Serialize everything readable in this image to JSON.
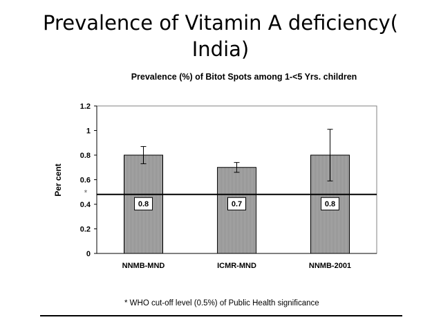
{
  "slide": {
    "title_line1": "Prevalence of Vitamin A deficiency(",
    "title_line2": "India)",
    "footnote": "* WHO cut-off level (0.5%) of Public Health significance"
  },
  "chart_data": {
    "type": "bar",
    "title": "Prevalence (%) of Bitot Spots among 1-<5 Yrs. children",
    "xlabel": "",
    "ylabel": "Per cent",
    "categories": [
      "NNMB-MND",
      "ICMR-MND",
      "NNMB-2001"
    ],
    "values": [
      0.8,
      0.7,
      0.8
    ],
    "value_labels": [
      "0.8",
      "0.7",
      "0.8"
    ],
    "error_bars": [
      {
        "low": 0.73,
        "high": 0.87
      },
      {
        "low": 0.66,
        "high": 0.74
      },
      {
        "low": 0.59,
        "high": 1.01
      }
    ],
    "ylim": [
      0,
      1.2
    ],
    "yticks": [
      0,
      0.2,
      0.4,
      0.6,
      0.8,
      1,
      1.2
    ],
    "ytick_labels": [
      "0",
      "0.2",
      "0.4",
      "0.6",
      "0.8",
      "1",
      "1.2"
    ],
    "reference_line": {
      "value": 0.48,
      "marker_label": "*"
    },
    "grid": false,
    "legend": "none",
    "bar_color": "#a8a8a8"
  }
}
